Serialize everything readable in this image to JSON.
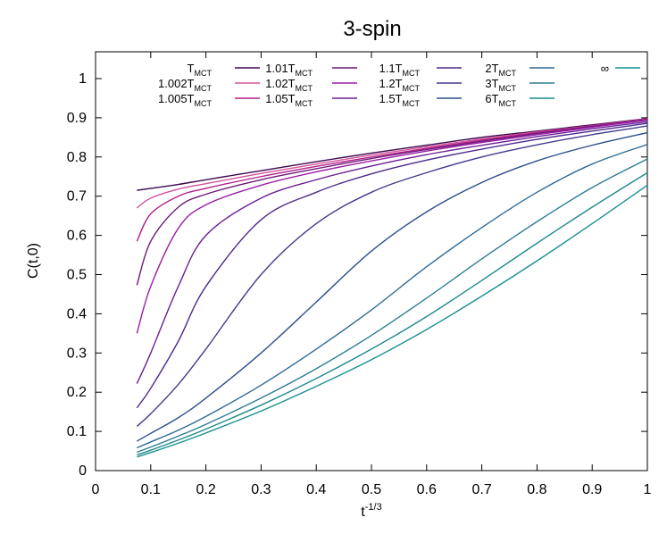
{
  "chart_data": {
    "type": "line",
    "title": "3-spin",
    "xlabel_base": "t",
    "xlabel_exp": "-1/3",
    "ylabel": "C(t,0)",
    "xlim": [
      0,
      1
    ],
    "ylim": [
      0,
      1.05
    ],
    "x_ticks": [
      "0",
      "0.1",
      "0.2",
      "0.3",
      "0.4",
      "0.5",
      "0.6",
      "0.7",
      "0.8",
      "0.9",
      "1"
    ],
    "y_ticks": [
      "0",
      "0.1",
      "0.2",
      "0.3",
      "0.4",
      "0.5",
      "0.6",
      "0.7",
      "0.8",
      "0.9",
      "1"
    ],
    "grid": false,
    "legend_position": "top",
    "series": [
      {
        "name": "T",
        "sub": "MCT",
        "color": "#3d0a4f",
        "x": [
          0.075,
          0.1,
          0.15,
          0.2,
          0.3,
          0.4,
          0.5,
          0.6,
          0.7,
          0.8,
          0.9,
          1.0
        ],
        "y": [
          0.715,
          0.72,
          0.73,
          0.742,
          0.765,
          0.788,
          0.81,
          0.83,
          0.85,
          0.866,
          0.882,
          0.898
        ]
      },
      {
        "name": "1.002T",
        "sub": "MCT",
        "color": "#d4539a",
        "x": [
          0.075,
          0.1,
          0.15,
          0.2,
          0.3,
          0.4,
          0.5,
          0.6,
          0.7,
          0.8,
          0.9,
          1.0
        ],
        "y": [
          0.67,
          0.695,
          0.718,
          0.732,
          0.758,
          0.782,
          0.805,
          0.826,
          0.846,
          0.864,
          0.88,
          0.897
        ]
      },
      {
        "name": "1.005T",
        "sub": "MCT",
        "color": "#b41e8a",
        "x": [
          0.075,
          0.1,
          0.15,
          0.2,
          0.3,
          0.4,
          0.5,
          0.6,
          0.7,
          0.8,
          0.9,
          1.0
        ],
        "y": [
          0.585,
          0.655,
          0.7,
          0.72,
          0.75,
          0.776,
          0.8,
          0.822,
          0.843,
          0.862,
          0.879,
          0.896
        ]
      },
      {
        "name": "1.01T",
        "sub": "MCT",
        "color": "#6c1a78",
        "x": [
          0.075,
          0.1,
          0.15,
          0.2,
          0.3,
          0.4,
          0.5,
          0.6,
          0.7,
          0.8,
          0.9,
          1.0
        ],
        "y": [
          0.473,
          0.585,
          0.672,
          0.705,
          0.742,
          0.77,
          0.796,
          0.819,
          0.84,
          0.86,
          0.878,
          0.895
        ]
      },
      {
        "name": "1.02T",
        "sub": "MCT",
        "color": "#9b1fa6",
        "x": [
          0.075,
          0.1,
          0.15,
          0.2,
          0.3,
          0.4,
          0.5,
          0.6,
          0.7,
          0.8,
          0.9,
          1.0
        ],
        "y": [
          0.35,
          0.47,
          0.618,
          0.678,
          0.728,
          0.762,
          0.79,
          0.815,
          0.837,
          0.857,
          0.876,
          0.894
        ]
      },
      {
        "name": "1.05T",
        "sub": "MCT",
        "color": "#6a1f94",
        "x": [
          0.075,
          0.1,
          0.15,
          0.2,
          0.3,
          0.4,
          0.5,
          0.6,
          0.7,
          0.8,
          0.9,
          1.0
        ],
        "y": [
          0.222,
          0.3,
          0.47,
          0.6,
          0.695,
          0.742,
          0.777,
          0.806,
          0.83,
          0.852,
          0.872,
          0.89
        ]
      },
      {
        "name": "1.1T",
        "sub": "MCT",
        "color": "#4e2a8e",
        "x": [
          0.075,
          0.1,
          0.15,
          0.2,
          0.3,
          0.4,
          0.5,
          0.6,
          0.7,
          0.8,
          0.9,
          1.0
        ],
        "y": [
          0.16,
          0.21,
          0.33,
          0.47,
          0.64,
          0.71,
          0.757,
          0.792,
          0.82,
          0.845,
          0.866,
          0.886
        ]
      },
      {
        "name": "1.2T",
        "sub": "MCT",
        "color": "#413c8d",
        "x": [
          0.075,
          0.1,
          0.15,
          0.2,
          0.3,
          0.4,
          0.5,
          0.6,
          0.7,
          0.8,
          0.9,
          1.0
        ],
        "y": [
          0.113,
          0.145,
          0.22,
          0.31,
          0.5,
          0.63,
          0.71,
          0.76,
          0.8,
          0.831,
          0.857,
          0.879
        ]
      },
      {
        "name": "1.5T",
        "sub": "MCT",
        "color": "#2d4f8a",
        "x": [
          0.075,
          0.1,
          0.15,
          0.2,
          0.3,
          0.4,
          0.5,
          0.6,
          0.7,
          0.8,
          0.9,
          1.0
        ],
        "y": [
          0.075,
          0.095,
          0.135,
          0.185,
          0.3,
          0.43,
          0.56,
          0.66,
          0.735,
          0.79,
          0.83,
          0.862
        ]
      },
      {
        "name": "2T",
        "sub": "MCT",
        "color": "#2e6a96",
        "x": [
          0.075,
          0.1,
          0.15,
          0.2,
          0.3,
          0.4,
          0.5,
          0.6,
          0.7,
          0.8,
          0.9,
          1.0
        ],
        "y": [
          0.058,
          0.073,
          0.103,
          0.138,
          0.218,
          0.31,
          0.41,
          0.52,
          0.62,
          0.71,
          0.782,
          0.832
        ]
      },
      {
        "name": "3T",
        "sub": "MCT",
        "color": "#2c7d93",
        "x": [
          0.075,
          0.1,
          0.15,
          0.2,
          0.3,
          0.4,
          0.5,
          0.6,
          0.7,
          0.8,
          0.9,
          1.0
        ],
        "y": [
          0.047,
          0.06,
          0.088,
          0.118,
          0.185,
          0.26,
          0.345,
          0.44,
          0.54,
          0.635,
          0.722,
          0.795
        ]
      },
      {
        "name": "6T",
        "sub": "MCT",
        "color": "#1f8a8c",
        "x": [
          0.075,
          0.1,
          0.15,
          0.2,
          0.3,
          0.4,
          0.5,
          0.6,
          0.7,
          0.8,
          0.9,
          1.0
        ],
        "y": [
          0.04,
          0.052,
          0.078,
          0.106,
          0.167,
          0.235,
          0.31,
          0.393,
          0.485,
          0.58,
          0.672,
          0.76
        ]
      },
      {
        "name": "∞",
        "sub": "",
        "color": "#1a9090",
        "x": [
          0.075,
          0.1,
          0.15,
          0.2,
          0.3,
          0.4,
          0.5,
          0.6,
          0.7,
          0.8,
          0.9,
          1.0
        ],
        "y": [
          0.035,
          0.046,
          0.07,
          0.096,
          0.152,
          0.215,
          0.283,
          0.36,
          0.445,
          0.535,
          0.63,
          0.728
        ]
      }
    ]
  }
}
